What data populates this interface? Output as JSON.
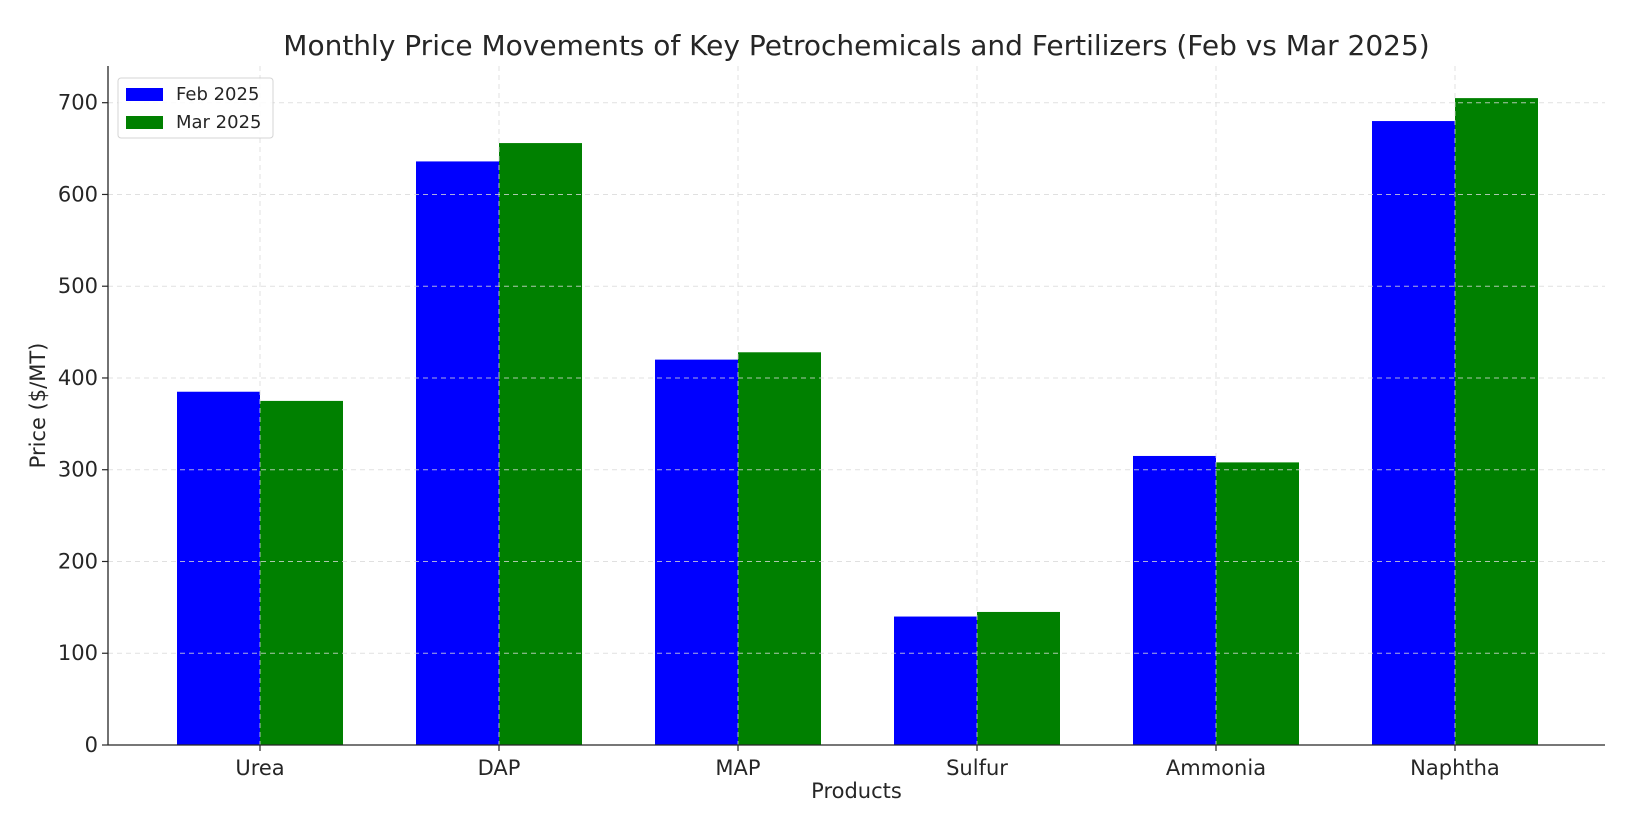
{
  "chart_data": {
    "type": "bar",
    "title": "Monthly Price Movements of Key Petrochemicals and Fertilizers (Feb vs Mar 2025)",
    "xlabel": "Products",
    "ylabel": "Price ($/MT)",
    "categories": [
      "Urea",
      "DAP",
      "MAP",
      "Sulfur",
      "Ammonia",
      "Naphtha"
    ],
    "series": [
      {
        "name": "Feb 2025",
        "color": "#0000ff",
        "values": [
          385,
          636,
          420,
          140,
          315,
          680
        ]
      },
      {
        "name": "Mar 2025",
        "color": "#008000",
        "values": [
          375,
          656,
          428,
          145,
          308,
          705
        ]
      }
    ],
    "ylim": [
      0,
      740
    ],
    "yticks": [
      0,
      100,
      200,
      300,
      400,
      500,
      600,
      700
    ],
    "grid": true,
    "legend_position": "top-left"
  }
}
